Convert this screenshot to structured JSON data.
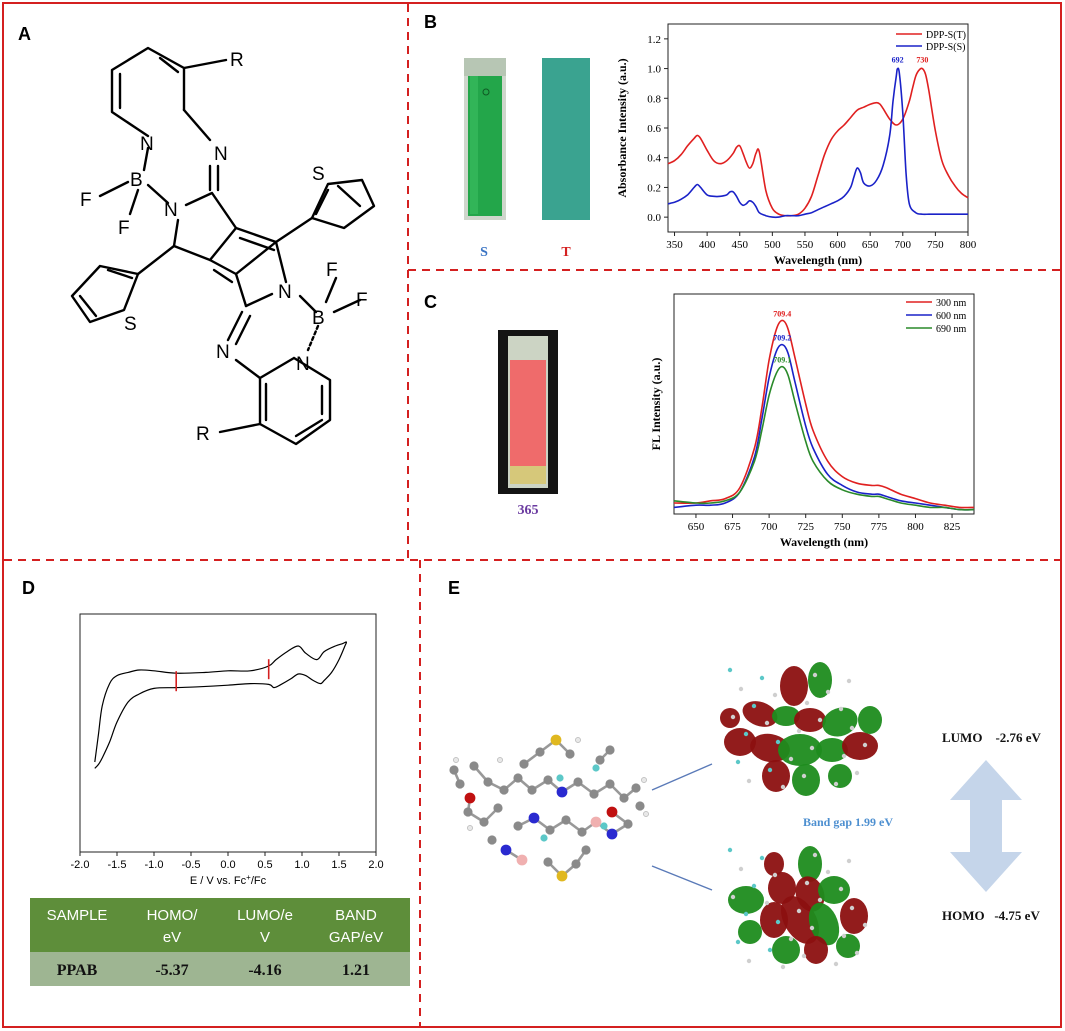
{
  "panels": {
    "A": {
      "letter": "A",
      "atoms": {
        "R1": "R",
        "R2": "R",
        "N1": "N",
        "N2": "N",
        "N3": "N",
        "N4": "N",
        "N5": "N",
        "N6": "N",
        "B1": "B",
        "B2": "B",
        "F1": "F",
        "F2": "F",
        "F3": "F",
        "F4": "F",
        "S1": "S",
        "S2": "S"
      }
    },
    "B": {
      "letter": "B",
      "photo_label_s": "S",
      "photo_label_t": "T"
    },
    "C": {
      "letter": "C",
      "photo_label": "365"
    },
    "D": {
      "letter": "D",
      "cv_xlabel": "E / V vs. Fc",
      "cv_xlabel_sup": "+",
      "cv_xlabel_tail": "/Fc",
      "table": {
        "headers": [
          [
            "SAMPLE"
          ],
          [
            "HOMO/",
            "eV"
          ],
          [
            "LUMO/e",
            "V"
          ],
          [
            "BAND",
            "GAP/eV"
          ]
        ],
        "row": [
          "PPAB",
          "-5.37",
          "-4.16",
          "1.21"
        ]
      }
    },
    "E": {
      "letter": "E",
      "lumo": "LUMO    -2.76 eV",
      "homo": "HOMO   -4.75 eV",
      "band_gap": "Band gap 1.99 eV"
    }
  },
  "chart_data": [
    {
      "type": "line",
      "panel": "B",
      "xlabel": "Wavelength (nm)",
      "ylabel": "Absorbance Intensity (a.u.)",
      "xlim": [
        340,
        800
      ],
      "ylim": [
        -0.1,
        1.3
      ],
      "xticks": [
        350,
        400,
        450,
        500,
        550,
        600,
        650,
        700,
        750,
        800
      ],
      "yticks": [
        0.0,
        0.2,
        0.4,
        0.6,
        0.8,
        1.0,
        1.2
      ],
      "legend_position": "top-right",
      "series": [
        {
          "name": "DPP-S(T)",
          "color": "#e02020",
          "x": [
            340,
            350,
            360,
            370,
            380,
            385,
            390,
            400,
            410,
            420,
            430,
            440,
            445,
            450,
            455,
            460,
            465,
            470,
            475,
            480,
            490,
            500,
            510,
            520,
            530,
            540,
            550,
            560,
            570,
            580,
            590,
            600,
            610,
            620,
            630,
            640,
            650,
            660,
            665,
            670,
            680,
            690,
            700,
            710,
            715,
            720,
            725,
            730,
            735,
            740,
            750,
            760,
            770,
            780,
            790,
            800
          ],
          "y": [
            0.36,
            0.38,
            0.42,
            0.48,
            0.53,
            0.55,
            0.53,
            0.45,
            0.38,
            0.36,
            0.38,
            0.43,
            0.47,
            0.48,
            0.43,
            0.37,
            0.33,
            0.36,
            0.43,
            0.44,
            0.18,
            0.06,
            0.02,
            0.01,
            0.01,
            0.02,
            0.06,
            0.14,
            0.28,
            0.42,
            0.52,
            0.58,
            0.62,
            0.67,
            0.72,
            0.74,
            0.76,
            0.77,
            0.76,
            0.73,
            0.66,
            0.62,
            0.66,
            0.78,
            0.87,
            0.95,
            0.99,
            1.0,
            0.96,
            0.85,
            0.58,
            0.38,
            0.28,
            0.21,
            0.16,
            0.13
          ],
          "peak_label": "730"
        },
        {
          "name": "DPP-S(S)",
          "color": "#1a22c8",
          "x": [
            340,
            350,
            360,
            370,
            380,
            385,
            390,
            400,
            410,
            420,
            430,
            435,
            440,
            445,
            450,
            455,
            460,
            465,
            470,
            475,
            480,
            490,
            500,
            510,
            520,
            530,
            540,
            550,
            560,
            570,
            580,
            590,
            600,
            610,
            620,
            625,
            630,
            635,
            640,
            650,
            660,
            670,
            680,
            685,
            690,
            692,
            695,
            700,
            705,
            710,
            720,
            730,
            740,
            750,
            760,
            770,
            780,
            790,
            800
          ],
          "y": [
            0.09,
            0.1,
            0.12,
            0.15,
            0.2,
            0.22,
            0.2,
            0.15,
            0.14,
            0.14,
            0.15,
            0.17,
            0.17,
            0.14,
            0.1,
            0.08,
            0.09,
            0.11,
            0.1,
            0.07,
            0.03,
            0.01,
            0.0,
            0.0,
            0.01,
            0.01,
            0.01,
            0.02,
            0.03,
            0.05,
            0.07,
            0.09,
            0.11,
            0.14,
            0.2,
            0.27,
            0.33,
            0.3,
            0.23,
            0.21,
            0.25,
            0.35,
            0.55,
            0.78,
            0.95,
            1.0,
            0.96,
            0.7,
            0.3,
            0.09,
            0.03,
            0.02,
            0.02,
            0.02,
            0.02,
            0.02,
            0.02,
            0.02,
            0.02
          ],
          "peak_label": "692"
        }
      ]
    },
    {
      "type": "line",
      "panel": "C",
      "xlabel": "Wavelength (nm)",
      "ylabel": "FL Intensity (a.u.)",
      "xlim": [
        635,
        840
      ],
      "ylim": [
        0,
        1.0
      ],
      "xticks": [
        650,
        675,
        700,
        725,
        750,
        775,
        800,
        825
      ],
      "legend_position": "top-right",
      "series": [
        {
          "name": "300 nm",
          "color": "#e02020",
          "peak_label": "709.4",
          "x": [
            635,
            650,
            660,
            670,
            680,
            690,
            695,
            700,
            705,
            709,
            713,
            718,
            725,
            730,
            740,
            750,
            760,
            770,
            775,
            780,
            790,
            800,
            810,
            820,
            830,
            840
          ],
          "y": [
            0.05,
            0.05,
            0.06,
            0.07,
            0.12,
            0.3,
            0.48,
            0.7,
            0.84,
            0.88,
            0.84,
            0.7,
            0.5,
            0.38,
            0.24,
            0.17,
            0.14,
            0.13,
            0.13,
            0.12,
            0.09,
            0.07,
            0.05,
            0.04,
            0.03,
            0.03
          ]
        },
        {
          "name": "600 nm",
          "color": "#1a22c8",
          "peak_label": "709.2",
          "x": [
            635,
            650,
            660,
            670,
            680,
            690,
            695,
            700,
            705,
            709,
            713,
            718,
            725,
            730,
            740,
            750,
            760,
            770,
            775,
            780,
            790,
            800,
            810,
            820,
            830,
            840
          ],
          "y": [
            0.03,
            0.04,
            0.04,
            0.05,
            0.1,
            0.26,
            0.43,
            0.62,
            0.74,
            0.77,
            0.73,
            0.59,
            0.4,
            0.3,
            0.18,
            0.13,
            0.1,
            0.09,
            0.09,
            0.08,
            0.06,
            0.05,
            0.04,
            0.03,
            0.02,
            0.02
          ]
        },
        {
          "name": "690 nm",
          "color": "#2a8a2a",
          "peak_label": "709.1",
          "x": [
            635,
            650,
            660,
            670,
            680,
            690,
            695,
            700,
            705,
            709,
            713,
            718,
            725,
            730,
            740,
            750,
            760,
            770,
            775,
            780,
            790,
            800,
            810,
            820,
            830,
            840
          ],
          "y": [
            0.06,
            0.05,
            0.05,
            0.06,
            0.1,
            0.24,
            0.38,
            0.54,
            0.64,
            0.67,
            0.63,
            0.5,
            0.33,
            0.24,
            0.15,
            0.11,
            0.09,
            0.08,
            0.08,
            0.07,
            0.05,
            0.04,
            0.03,
            0.03,
            0.02,
            0.02
          ]
        }
      ]
    },
    {
      "type": "line",
      "panel": "D",
      "xlabel": "E / V vs. Fc+/Fc",
      "xlim": [
        -2.0,
        2.0
      ],
      "xticks": [
        "-2.0",
        "-1.5",
        "-1.0",
        "-0.5",
        "0.0",
        "0.5",
        "1.0",
        "1.5",
        "2.0"
      ],
      "series": [
        {
          "name": "",
          "color": "#000000",
          "x": [
            -1.8,
            -1.75,
            -1.7,
            -1.6,
            -1.5,
            -1.35,
            -1.2,
            -1.0,
            -0.7,
            -0.3,
            0.0,
            0.3,
            0.55,
            0.65,
            0.8,
            0.95,
            1.05,
            1.2,
            1.3,
            1.45,
            1.55,
            1.6,
            1.58,
            1.5,
            1.4,
            1.3,
            1.25,
            1.15,
            1.05,
            0.95,
            0.85,
            0.7,
            0.62,
            0.55,
            0.3,
            0.0,
            -0.4,
            -0.7,
            -1.0,
            -1.2,
            -1.35,
            -1.5,
            -1.6,
            -1.7,
            -1.75,
            -1.8
          ],
          "y": [
            -0.9,
            -0.55,
            -0.2,
            0.08,
            0.18,
            0.22,
            0.25,
            0.24,
            0.21,
            0.22,
            0.24,
            0.24,
            0.3,
            0.38,
            0.48,
            0.55,
            0.46,
            0.38,
            0.48,
            0.55,
            0.58,
            0.6,
            0.55,
            0.38,
            0.22,
            0.12,
            0.08,
            0.12,
            0.18,
            0.2,
            0.14,
            0.06,
            0.03,
            0.07,
            0.08,
            0.06,
            0.04,
            0.03,
            0.02,
            -0.05,
            -0.15,
            -0.4,
            -0.65,
            -0.85,
            -0.93,
            -0.98
          ]
        }
      ],
      "markers_x": [
        -0.7,
        0.55
      ]
    }
  ]
}
